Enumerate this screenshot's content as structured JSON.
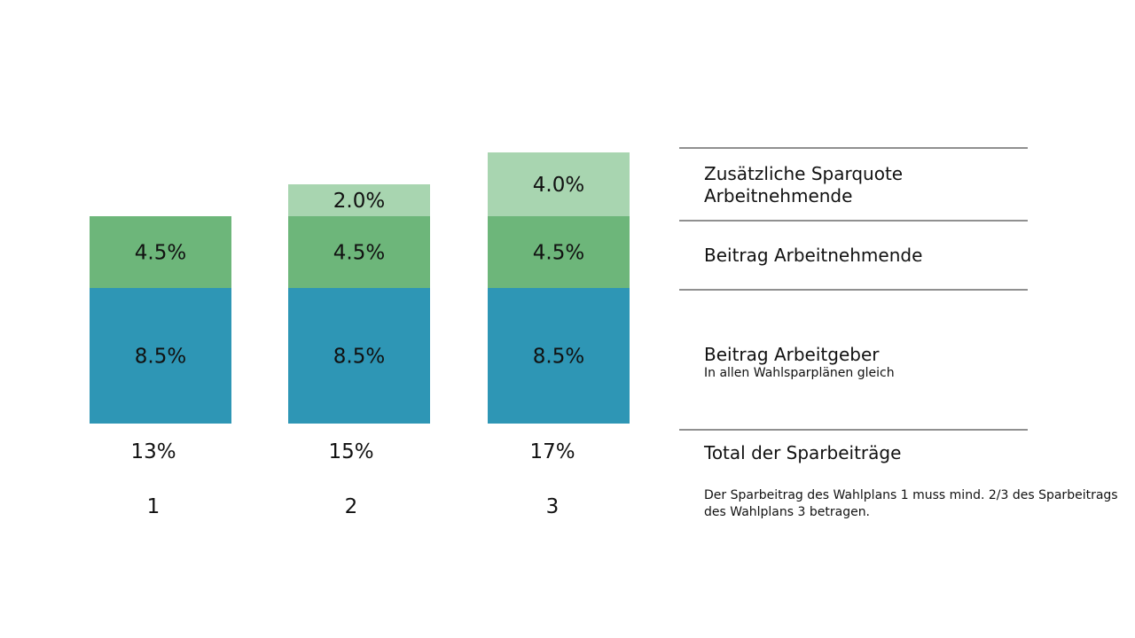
{
  "chart_data": {
    "type": "bar",
    "stacked": true,
    "categories": [
      "1",
      "2",
      "3"
    ],
    "unit": "%",
    "series": [
      {
        "name": "Beitrag Arbeitgeber",
        "values": [
          8.5,
          8.5,
          8.5
        ],
        "labels": [
          "8.5%",
          "8.5%",
          "8.5%"
        ],
        "color": "#2e96b5"
      },
      {
        "name": "Beitrag Arbeitnehmende",
        "values": [
          4.5,
          4.5,
          4.5
        ],
        "labels": [
          "4.5%",
          "4.5%",
          "4.5%"
        ],
        "color": "#6db67a"
      },
      {
        "name": "Zusätzliche Sparquote Arbeitnehmende",
        "values": [
          0,
          2.0,
          4.0
        ],
        "labels": [
          "",
          "2.0%",
          "4.0%"
        ],
        "color": "#a8d5b0"
      }
    ],
    "totals": [
      "13%",
      "15%",
      "17%"
    ],
    "ylim": [
      0,
      17
    ],
    "grid": false,
    "legend_position": "right"
  },
  "legend": {
    "additional": "Zusätzliche Sparquote Arbeitnehmende",
    "employee": "Beitrag Arbeitnehmende",
    "employer": "Beitrag Arbeitgeber",
    "employer_note": "In allen Wahlsparplänen gleich",
    "total": "Total der Sparbeiträge"
  },
  "note": "Der Sparbeitrag des Wahlplans 1 muss mind. 2/3 des Sparbeitrags des Wahlplans 3 betragen."
}
